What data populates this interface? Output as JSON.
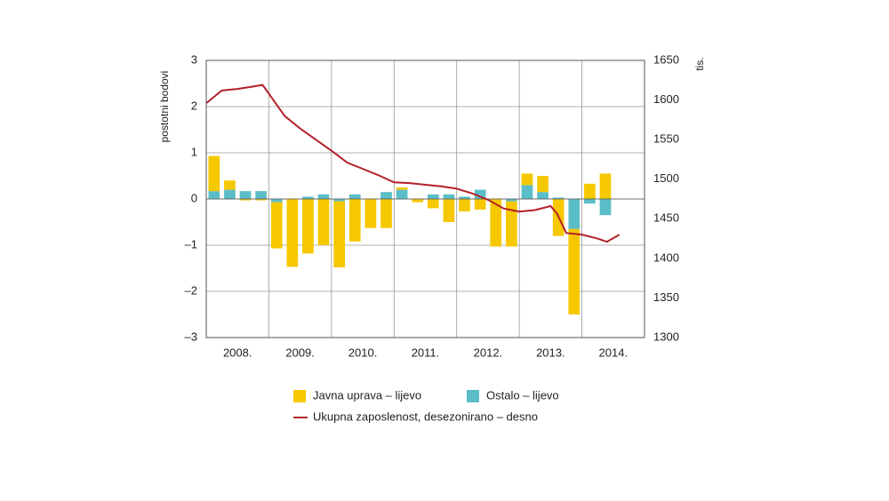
{
  "chart_data": {
    "type": "bar-line",
    "ylabel": "postotni bodovi",
    "y2label": "tis.",
    "year_labels": [
      "2008.",
      "2009.",
      "2010.",
      "2011.",
      "2012.",
      "2013.",
      "2014."
    ],
    "xlim": [
      2008,
      2015
    ],
    "xticks": [
      2008,
      2009,
      2010,
      2011,
      2012,
      2013,
      2014,
      2015
    ],
    "ylim": [
      -3,
      3
    ],
    "yticks": [
      {
        "value": -3,
        "label": "–3"
      },
      {
        "value": -2,
        "label": "–2"
      },
      {
        "value": -1,
        "label": "–1"
      },
      0,
      1,
      2,
      3
    ],
    "y2lim": [
      1300,
      1650
    ],
    "y2ticks": [
      1300,
      1350,
      1400,
      1450,
      1500,
      1550,
      1600,
      1650
    ],
    "grid": true,
    "categories": [
      null,
      null,
      null,
      null,
      null,
      null,
      null,
      null,
      null,
      null,
      null,
      null,
      null,
      null,
      null,
      null,
      null,
      null,
      null,
      null,
      null,
      null,
      null,
      null,
      null,
      null,
      null,
      null
    ],
    "series": [
      {
        "name": "Ostalo – lijevo",
        "color": "#5bbdc8",
        "stacked": true,
        "values": [
          0.17,
          0.2,
          0.17,
          0.17,
          -0.07,
          0,
          0.05,
          0.1,
          -0.05,
          0.1,
          0,
          0.15,
          0.2,
          0,
          0.1,
          0.1,
          0.05,
          0.2,
          0,
          -0.05,
          0.3,
          0.15,
          0.03,
          -0.65,
          -0.1,
          -0.35,
          null,
          null
        ]
      },
      {
        "name": "Javna uprava – lijevo",
        "color": "#f5c800",
        "stacked": true,
        "values": [
          0.76,
          0.2,
          -0.03,
          -0.03,
          -1.0,
          -1.47,
          -1.18,
          -1.0,
          -1.43,
          -0.92,
          -0.63,
          -0.63,
          0.05,
          -0.07,
          -0.2,
          -0.5,
          -0.27,
          -0.23,
          -1.03,
          -0.98,
          0.25,
          0.35,
          -0.8,
          -1.85,
          0.33,
          0.55,
          null,
          null
        ]
      },
      {
        "name": "Ukupna zaposlenost, desezonirano – desno",
        "color": "#b5202a",
        "kind": "line",
        "axis": "y2",
        "x": [
          2008.0,
          2008.25,
          2008.5,
          2008.75,
          2008.9,
          2009.0,
          2009.25,
          2009.5,
          2009.75,
          2010.0,
          2010.25,
          2010.5,
          2010.75,
          2011.0,
          2011.25,
          2011.5,
          2011.75,
          2012.0,
          2012.25,
          2012.5,
          2012.75,
          2013.0,
          2013.25,
          2013.5,
          2013.6,
          2013.75,
          2014.0,
          2014.25,
          2014.4,
          2014.6
        ],
        "values": [
          1596,
          1612,
          1614,
          1617,
          1619,
          1608,
          1580,
          1564,
          1550,
          1536,
          1521,
          1513,
          1505,
          1496,
          1495,
          1493,
          1491,
          1488,
          1482,
          1474,
          1463,
          1459,
          1461,
          1466,
          1457,
          1432,
          1430,
          1425,
          1421,
          1430
        ]
      }
    ]
  }
}
